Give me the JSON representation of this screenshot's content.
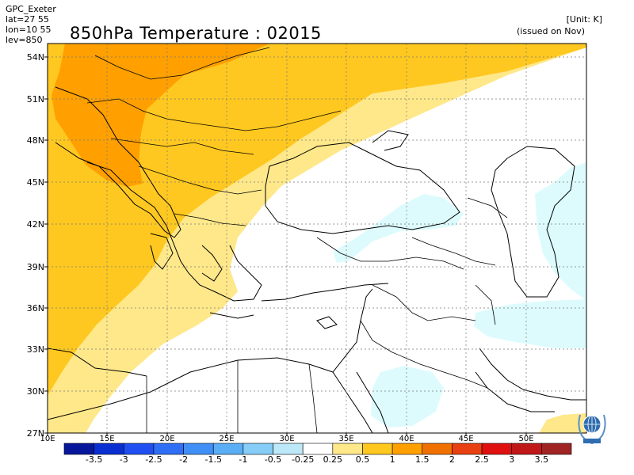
{
  "header": {
    "source": "GPC_Exeter",
    "lat": "lat=27 55",
    "lon": "lon=10 55",
    "lev": "lev=850",
    "title": "850hPa Temperature : 02015",
    "unit": "[Unit: K]",
    "issued": "(issued on Nov)"
  },
  "axes": {
    "lat_labels": [
      "54N",
      "51N",
      "48N",
      "45N",
      "42N",
      "39N",
      "36N",
      "33N",
      "30N",
      "27N"
    ],
    "lon_labels": [
      "10E",
      "15E",
      "20E",
      "25E",
      "30E",
      "35E",
      "40E",
      "45E",
      "50E"
    ]
  },
  "colorbar": {
    "colors": [
      "#07179b",
      "#0a2fd0",
      "#1f4ff0",
      "#2f6ff6",
      "#3f8ff7",
      "#5aaef5",
      "#86cdf8",
      "#bde8f8",
      "#ffffff",
      "#ffe88a",
      "#ffc820",
      "#ffa000",
      "#f07000",
      "#e84010",
      "#e01010",
      "#c01818",
      "#a02424"
    ],
    "labels": [
      "-3.5",
      "-3",
      "-2.5",
      "-2",
      "-1.5",
      "-1",
      "-0.5",
      "-0.25",
      "0.25",
      "0.5",
      "1",
      "1.5",
      "2",
      "2.5",
      "3",
      "3.5"
    ]
  },
  "logo": {
    "name": "wmo-emblem-icon"
  }
}
